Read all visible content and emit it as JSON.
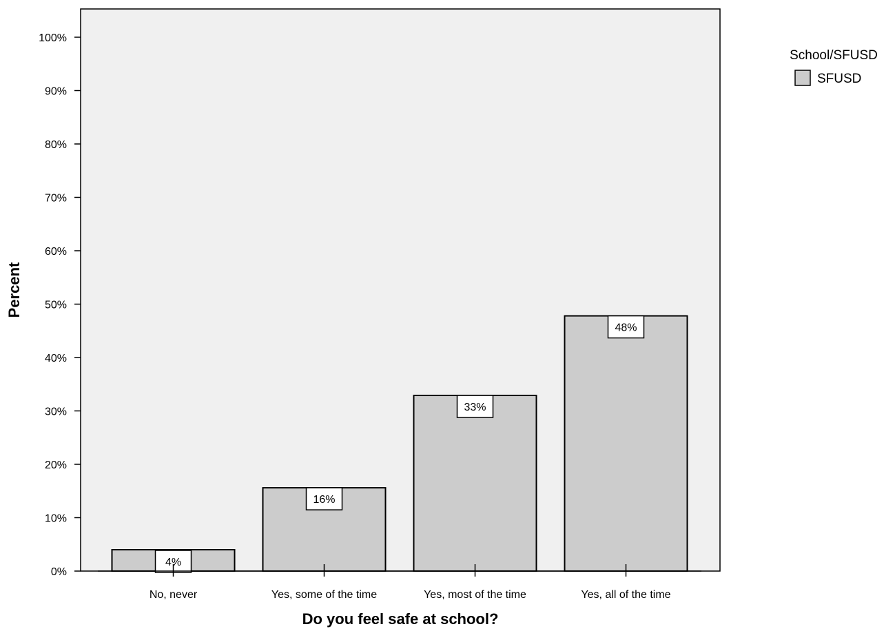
{
  "chart_data": {
    "type": "bar",
    "xlabel": "Do you feel safe at school?",
    "ylabel": "Percent",
    "categories": [
      "No, never",
      "Yes, some of the time",
      "Yes, most of the time",
      "Yes, all of the time"
    ],
    "series": [
      {
        "name": "SFUSD",
        "values": [
          4,
          15.6,
          32.9,
          47.8
        ],
        "data_labels": [
          "4%",
          "16%",
          "33%",
          "48%"
        ],
        "color": "#cccccc"
      }
    ],
    "ylim": [
      0,
      100
    ],
    "yticks": [
      0,
      10,
      20,
      30,
      40,
      50,
      60,
      70,
      80,
      90,
      100
    ],
    "ytick_labels": [
      "0%",
      "10%",
      "20%",
      "30%",
      "40%",
      "50%",
      "60%",
      "70%",
      "80%",
      "90%",
      "100%"
    ],
    "legend": {
      "title": "School/SFUSD",
      "position": "top-right"
    },
    "plot_background": "#f0f0f0",
    "grid": false
  }
}
